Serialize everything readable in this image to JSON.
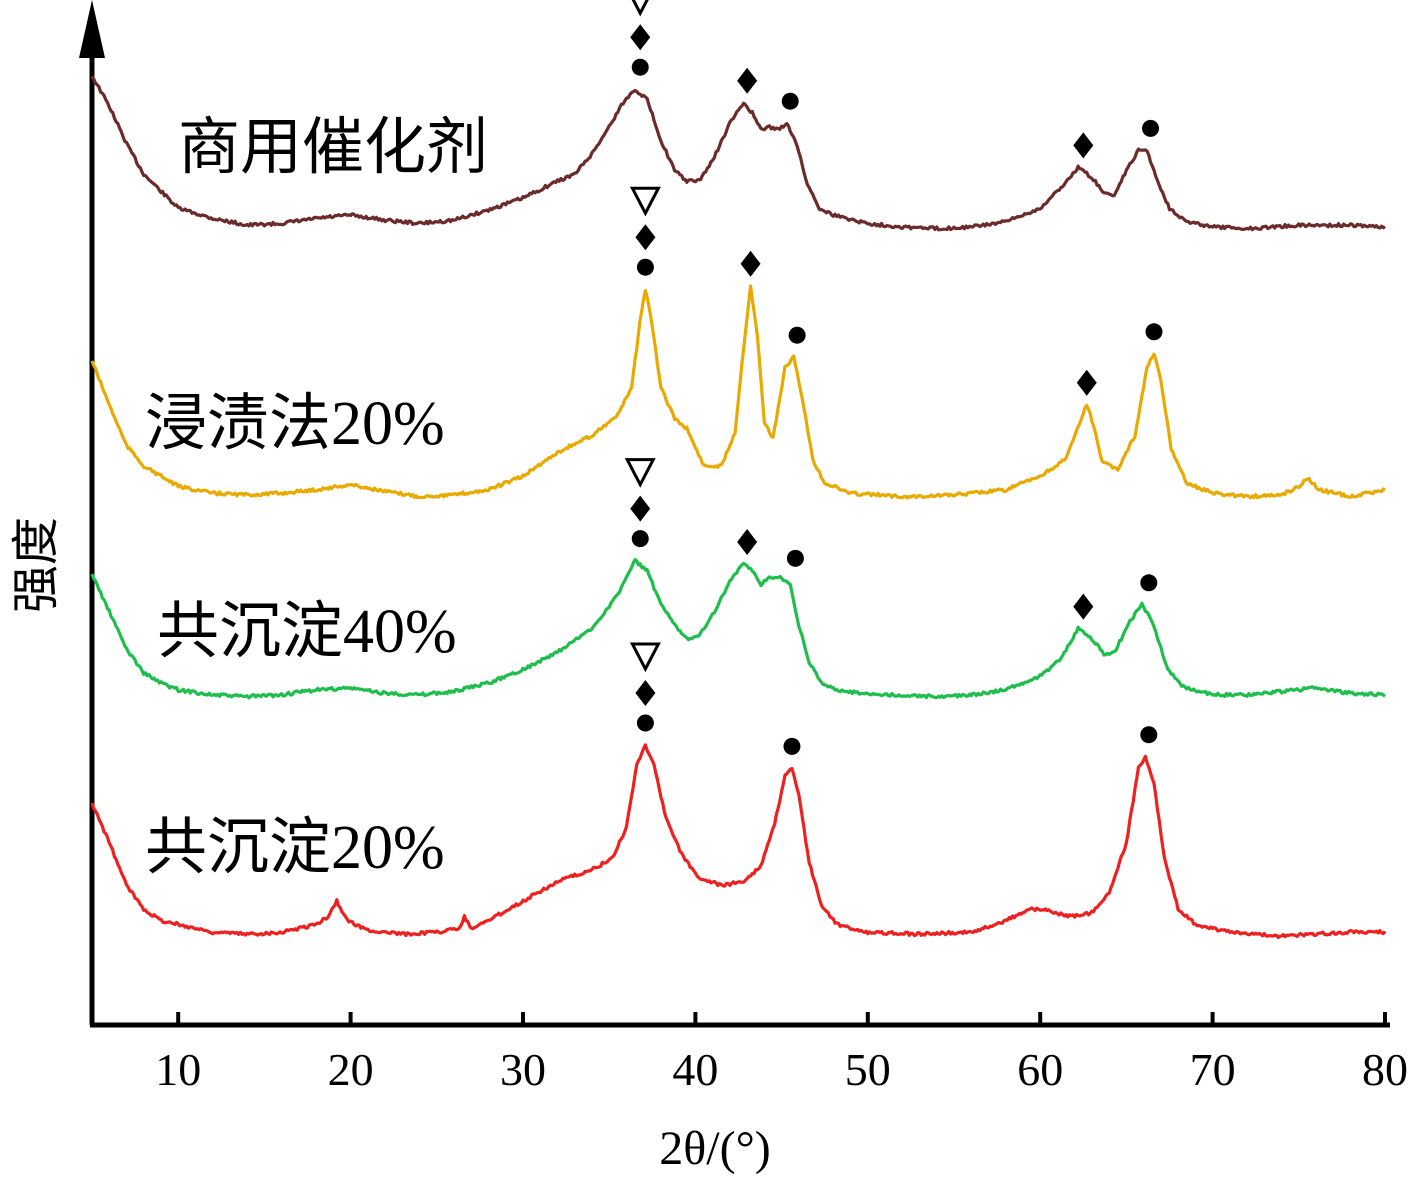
{
  "chart_data": {
    "type": "line",
    "xlabel": "2θ/(°)",
    "ylabel": "强度",
    "xlim": [
      5,
      80
    ],
    "xticks": [
      10,
      20,
      30,
      40,
      50,
      60,
      70,
      80
    ],
    "x_tick_labels": [
      "10",
      "20",
      "30",
      "40",
      "50",
      "60",
      "70",
      "80"
    ],
    "y_ticks_shown": false,
    "grid": false,
    "legend": "inline labels, left of each curve",
    "offset_stacked": true,
    "marker_legend": {
      "triangle_open": "▽",
      "diamond_filled": "◆",
      "circle_filled": "●"
    },
    "series": [
      {
        "name": "商用催化剂",
        "color": "#6b2b2b",
        "points": [
          [
            5,
            0.92
          ],
          [
            6,
            0.74
          ],
          [
            7,
            0.52
          ],
          [
            8,
            0.34
          ],
          [
            9,
            0.24
          ],
          [
            10,
            0.14
          ],
          [
            12,
            0.08
          ],
          [
            14,
            0.04
          ],
          [
            16,
            0.05
          ],
          [
            18,
            0.08
          ],
          [
            20,
            0.1
          ],
          [
            22,
            0.07
          ],
          [
            24,
            0.05
          ],
          [
            26,
            0.07
          ],
          [
            28,
            0.13
          ],
          [
            30,
            0.2
          ],
          [
            32,
            0.3
          ],
          [
            33,
            0.34
          ],
          [
            34,
            0.46
          ],
          [
            35,
            0.62
          ],
          [
            35.8,
            0.76
          ],
          [
            36.5,
            0.84
          ],
          [
            37.2,
            0.78
          ],
          [
            38,
            0.54
          ],
          [
            38.8,
            0.36
          ],
          [
            39.5,
            0.3
          ],
          [
            40.2,
            0.3
          ],
          [
            41,
            0.42
          ],
          [
            42,
            0.64
          ],
          [
            42.8,
            0.76
          ],
          [
            43.3,
            0.7
          ],
          [
            43.8,
            0.6
          ],
          [
            44.3,
            0.62
          ],
          [
            44.8,
            0.6
          ],
          [
            45.3,
            0.64
          ],
          [
            45.8,
            0.54
          ],
          [
            46.5,
            0.28
          ],
          [
            47.2,
            0.14
          ],
          [
            48,
            0.1
          ],
          [
            50,
            0.05
          ],
          [
            52,
            0.03
          ],
          [
            54,
            0.02
          ],
          [
            56,
            0.03
          ],
          [
            58,
            0.06
          ],
          [
            60,
            0.14
          ],
          [
            61.2,
            0.26
          ],
          [
            62.2,
            0.38
          ],
          [
            63,
            0.32
          ],
          [
            63.8,
            0.22
          ],
          [
            64.3,
            0.22
          ],
          [
            65,
            0.36
          ],
          [
            65.7,
            0.48
          ],
          [
            66.2,
            0.48
          ],
          [
            66.8,
            0.3
          ],
          [
            67.5,
            0.14
          ],
          [
            68.5,
            0.06
          ],
          [
            70,
            0.03
          ],
          [
            72,
            0.02
          ],
          [
            75,
            0.04
          ],
          [
            78,
            0.04
          ],
          [
            80,
            0.03
          ]
        ]
      },
      {
        "name": "浸渍法20%",
        "color": "#e8a900",
        "points": [
          [
            5,
            0.82
          ],
          [
            6,
            0.56
          ],
          [
            7,
            0.32
          ],
          [
            8,
            0.2
          ],
          [
            9,
            0.14
          ],
          [
            10,
            0.08
          ],
          [
            12,
            0.04
          ],
          [
            14,
            0.03
          ],
          [
            16,
            0.04
          ],
          [
            18,
            0.06
          ],
          [
            20,
            0.09
          ],
          [
            22,
            0.05
          ],
          [
            24,
            0.02
          ],
          [
            26,
            0.03
          ],
          [
            28,
            0.06
          ],
          [
            30,
            0.14
          ],
          [
            32,
            0.28
          ],
          [
            34,
            0.38
          ],
          [
            35.5,
            0.5
          ],
          [
            36.3,
            0.66
          ],
          [
            36.8,
            1.06
          ],
          [
            37.1,
            1.24
          ],
          [
            37.5,
            1.02
          ],
          [
            38,
            0.66
          ],
          [
            38.8,
            0.48
          ],
          [
            39.5,
            0.42
          ],
          [
            40.5,
            0.2
          ],
          [
            41.5,
            0.2
          ],
          [
            42.3,
            0.4
          ],
          [
            42.8,
            0.9
          ],
          [
            43.2,
            1.26
          ],
          [
            43.6,
            0.96
          ],
          [
            44,
            0.46
          ],
          [
            44.5,
            0.36
          ],
          [
            45.2,
            0.78
          ],
          [
            45.7,
            0.84
          ],
          [
            46.2,
            0.6
          ],
          [
            46.8,
            0.24
          ],
          [
            47.5,
            0.1
          ],
          [
            49,
            0.04
          ],
          [
            52,
            0.02
          ],
          [
            55,
            0.03
          ],
          [
            58,
            0.06
          ],
          [
            60,
            0.14
          ],
          [
            61.5,
            0.24
          ],
          [
            62.3,
            0.46
          ],
          [
            62.7,
            0.56
          ],
          [
            63.1,
            0.44
          ],
          [
            63.6,
            0.22
          ],
          [
            64.5,
            0.18
          ],
          [
            65.5,
            0.38
          ],
          [
            66.2,
            0.78
          ],
          [
            66.6,
            0.86
          ],
          [
            67,
            0.7
          ],
          [
            67.6,
            0.3
          ],
          [
            68.5,
            0.1
          ],
          [
            70,
            0.04
          ],
          [
            72,
            0.02
          ],
          [
            74,
            0.03
          ],
          [
            75,
            0.08
          ],
          [
            75.5,
            0.13
          ],
          [
            76.2,
            0.06
          ],
          [
            78,
            0.02
          ],
          [
            80,
            0.06
          ]
        ]
      },
      {
        "name": "共沉淀40%",
        "color": "#1ebe4d",
        "points": [
          [
            5,
            0.74
          ],
          [
            6,
            0.52
          ],
          [
            7,
            0.3
          ],
          [
            8,
            0.16
          ],
          [
            9,
            0.1
          ],
          [
            10,
            0.06
          ],
          [
            12,
            0.03
          ],
          [
            14,
            0.02
          ],
          [
            16,
            0.03
          ],
          [
            18,
            0.06
          ],
          [
            20,
            0.07
          ],
          [
            22,
            0.04
          ],
          [
            24,
            0.03
          ],
          [
            26,
            0.05
          ],
          [
            28,
            0.1
          ],
          [
            30,
            0.18
          ],
          [
            32,
            0.28
          ],
          [
            34,
            0.42
          ],
          [
            35.5,
            0.62
          ],
          [
            36.5,
            0.82
          ],
          [
            37.2,
            0.76
          ],
          [
            38,
            0.56
          ],
          [
            38.8,
            0.44
          ],
          [
            39.5,
            0.36
          ],
          [
            40.2,
            0.38
          ],
          [
            41,
            0.5
          ],
          [
            42,
            0.7
          ],
          [
            42.8,
            0.8
          ],
          [
            43.3,
            0.76
          ],
          [
            43.8,
            0.68
          ],
          [
            44.3,
            0.72
          ],
          [
            45,
            0.72
          ],
          [
            45.5,
            0.68
          ],
          [
            46,
            0.44
          ],
          [
            46.6,
            0.22
          ],
          [
            47.3,
            0.1
          ],
          [
            48.5,
            0.05
          ],
          [
            51,
            0.03
          ],
          [
            54,
            0.02
          ],
          [
            56,
            0.03
          ],
          [
            58,
            0.06
          ],
          [
            60,
            0.14
          ],
          [
            61.2,
            0.24
          ],
          [
            62.2,
            0.42
          ],
          [
            63,
            0.36
          ],
          [
            63.8,
            0.26
          ],
          [
            64.4,
            0.3
          ],
          [
            65.2,
            0.46
          ],
          [
            65.9,
            0.56
          ],
          [
            66.6,
            0.44
          ],
          [
            67.3,
            0.2
          ],
          [
            68.2,
            0.08
          ],
          [
            70,
            0.03
          ],
          [
            72,
            0.03
          ],
          [
            74,
            0.05
          ],
          [
            76,
            0.07
          ],
          [
            78,
            0.04
          ],
          [
            80,
            0.03
          ]
        ]
      },
      {
        "name": "共沉淀20%",
        "color": "#ee2020",
        "points": [
          [
            5,
            0.7
          ],
          [
            6,
            0.5
          ],
          [
            7,
            0.28
          ],
          [
            8,
            0.16
          ],
          [
            9,
            0.1
          ],
          [
            10,
            0.08
          ],
          [
            12,
            0.04
          ],
          [
            14,
            0.03
          ],
          [
            16,
            0.04
          ],
          [
            18,
            0.08
          ],
          [
            18.7,
            0.12
          ],
          [
            19.2,
            0.2
          ],
          [
            19.8,
            0.1
          ],
          [
            21,
            0.05
          ],
          [
            23,
            0.03
          ],
          [
            25,
            0.04
          ],
          [
            26.3,
            0.06
          ],
          [
            26.6,
            0.12
          ],
          [
            27,
            0.06
          ],
          [
            28,
            0.1
          ],
          [
            30,
            0.2
          ],
          [
            32,
            0.3
          ],
          [
            34,
            0.36
          ],
          [
            35.2,
            0.42
          ],
          [
            36,
            0.58
          ],
          [
            36.6,
            0.9
          ],
          [
            37.1,
            1
          ],
          [
            37.6,
            0.9
          ],
          [
            38.3,
            0.62
          ],
          [
            39.2,
            0.44
          ],
          [
            40.2,
            0.32
          ],
          [
            41.5,
            0.28
          ],
          [
            42.8,
            0.3
          ],
          [
            43.8,
            0.38
          ],
          [
            44.6,
            0.6
          ],
          [
            45.2,
            0.84
          ],
          [
            45.6,
            0.88
          ],
          [
            46,
            0.74
          ],
          [
            46.6,
            0.4
          ],
          [
            47.3,
            0.18
          ],
          [
            48.2,
            0.08
          ],
          [
            50,
            0.04
          ],
          [
            53,
            0.03
          ],
          [
            56,
            0.04
          ],
          [
            58,
            0.1
          ],
          [
            59.5,
            0.16
          ],
          [
            60.5,
            0.15
          ],
          [
            61.8,
            0.12
          ],
          [
            63,
            0.14
          ],
          [
            64,
            0.24
          ],
          [
            65,
            0.5
          ],
          [
            65.7,
            0.88
          ],
          [
            66.1,
            0.94
          ],
          [
            66.6,
            0.8
          ],
          [
            67.2,
            0.42
          ],
          [
            68,
            0.16
          ],
          [
            69,
            0.08
          ],
          [
            71,
            0.04
          ],
          [
            74,
            0.02
          ],
          [
            76,
            0.03
          ],
          [
            78,
            0.04
          ],
          [
            80,
            0.04
          ]
        ]
      }
    ],
    "peak_markers": [
      {
        "series": "商用催化剂",
        "x": 36.8,
        "markers": [
          "triangle_open",
          "diamond_filled",
          "circle_filled"
        ]
      },
      {
        "series": "商用催化剂",
        "x": 43.0,
        "markers": [
          "diamond_filled"
        ]
      },
      {
        "series": "商用催化剂",
        "x": 45.5,
        "markers": [
          "circle_filled"
        ]
      },
      {
        "series": "商用催化剂",
        "x": 62.5,
        "markers": [
          "diamond_filled"
        ]
      },
      {
        "series": "商用催化剂",
        "x": 66.4,
        "markers": [
          "circle_filled"
        ]
      },
      {
        "series": "浸渍法20%",
        "x": 37.1,
        "markers": [
          "triangle_open",
          "diamond_filled",
          "circle_filled"
        ]
      },
      {
        "series": "浸渍法20%",
        "x": 43.2,
        "markers": [
          "diamond_filled"
        ]
      },
      {
        "series": "浸渍法20%",
        "x": 45.9,
        "markers": [
          "circle_filled"
        ]
      },
      {
        "series": "浸渍法20%",
        "x": 62.7,
        "markers": [
          "diamond_filled"
        ]
      },
      {
        "series": "浸渍法20%",
        "x": 66.6,
        "markers": [
          "circle_filled"
        ]
      },
      {
        "series": "共沉淀40%",
        "x": 36.8,
        "markers": [
          "triangle_open",
          "diamond_filled",
          "circle_filled"
        ]
      },
      {
        "series": "共沉淀40%",
        "x": 43.0,
        "markers": [
          "diamond_filled"
        ]
      },
      {
        "series": "共沉淀40%",
        "x": 45.8,
        "markers": [
          "circle_filled"
        ]
      },
      {
        "series": "共沉淀40%",
        "x": 62.5,
        "markers": [
          "diamond_filled"
        ]
      },
      {
        "series": "共沉淀40%",
        "x": 66.3,
        "markers": [
          "circle_filled"
        ]
      },
      {
        "series": "共沉淀20%",
        "x": 37.1,
        "markers": [
          "triangle_open",
          "diamond_filled",
          "circle_filled"
        ]
      },
      {
        "series": "共沉淀20%",
        "x": 45.6,
        "markers": [
          "circle_filled"
        ]
      },
      {
        "series": "共沉淀20%",
        "x": 66.3,
        "markers": [
          "circle_filled"
        ]
      }
    ]
  }
}
